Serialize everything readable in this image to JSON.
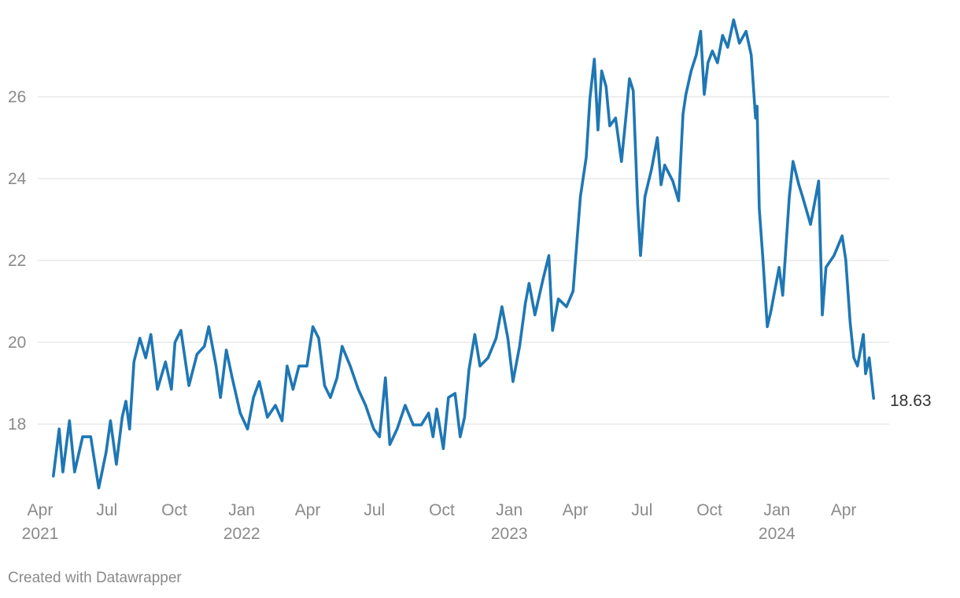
{
  "chart_data": {
    "type": "line",
    "title": "",
    "xlabel": "",
    "ylabel": "",
    "ylim": [
      16.3,
      28.0
    ],
    "y_ticks": [
      "18",
      "20",
      "22",
      "24",
      "26"
    ],
    "x_ticks": [
      {
        "date": "2021-04-01",
        "month": "Apr",
        "year": "2021"
      },
      {
        "date": "2021-07-01",
        "month": "Jul",
        "year": ""
      },
      {
        "date": "2021-10-01",
        "month": "Oct",
        "year": ""
      },
      {
        "date": "2022-01-01",
        "month": "Jan",
        "year": "2022"
      },
      {
        "date": "2022-04-01",
        "month": "Apr",
        "year": ""
      },
      {
        "date": "2022-07-01",
        "month": "Jul",
        "year": ""
      },
      {
        "date": "2022-10-01",
        "month": "Oct",
        "year": ""
      },
      {
        "date": "2023-01-01",
        "month": "Jan",
        "year": "2023"
      },
      {
        "date": "2023-04-01",
        "month": "Apr",
        "year": ""
      },
      {
        "date": "2023-07-01",
        "month": "Jul",
        "year": ""
      },
      {
        "date": "2023-10-01",
        "month": "Oct",
        "year": ""
      },
      {
        "date": "2024-01-01",
        "month": "Jan",
        "year": "2024"
      },
      {
        "date": "2024-04-01",
        "month": "Apr",
        "year": ""
      }
    ],
    "grid": true,
    "line_color": "#1f77b4",
    "end_label": "18.63",
    "series": [
      {
        "x": [
          "2021-04-19",
          "2021-04-27",
          "2021-05-02",
          "2021-05-11",
          "2021-05-18",
          "2021-05-29",
          "2021-06-09",
          "2021-06-20",
          "2021-06-30",
          "2021-07-06",
          "2021-07-14",
          "2021-07-22",
          "2021-07-27",
          "2021-08-01",
          "2021-08-07",
          "2021-08-15",
          "2021-08-23",
          "2021-08-30",
          "2021-09-08",
          "2021-09-19",
          "2021-09-27",
          "2021-10-02",
          "2021-10-10",
          "2021-10-21",
          "2021-11-01",
          "2021-11-11",
          "2021-11-17",
          "2021-11-27",
          "2021-12-03",
          "2021-12-11",
          "2021-12-19",
          "2021-12-30",
          "2022-01-09",
          "2022-01-17",
          "2022-01-25",
          "2022-02-05",
          "2022-02-16",
          "2022-02-25",
          "2022-03-04",
          "2022-03-12",
          "2022-03-20",
          "2022-03-31",
          "2022-04-08",
          "2022-04-16",
          "2022-04-24",
          "2022-05-02",
          "2022-05-11",
          "2022-05-18",
          "2022-05-29",
          "2022-06-09",
          "2022-06-19",
          "2022-06-30",
          "2022-07-08",
          "2022-07-16",
          "2022-07-22",
          "2022-08-01",
          "2022-08-12",
          "2022-08-23",
          "2022-09-03",
          "2022-09-13",
          "2022-09-19",
          "2022-09-24",
          "2022-10-03",
          "2022-10-10",
          "2022-10-19",
          "2022-10-26",
          "2022-11-01",
          "2022-11-07",
          "2022-11-15",
          "2022-11-22",
          "2022-12-03",
          "2022-12-14",
          "2022-12-22",
          "2022-12-30",
          "2023-01-06",
          "2023-01-15",
          "2023-01-23",
          "2023-01-28",
          "2023-02-05",
          "2023-02-16",
          "2023-02-24",
          "2023-03-01",
          "2023-03-09",
          "2023-03-20",
          "2023-03-29",
          "2023-04-03",
          "2023-04-08",
          "2023-04-16",
          "2023-04-21",
          "2023-04-27",
          "2023-05-02",
          "2023-05-07",
          "2023-05-13",
          "2023-05-18",
          "2023-05-26",
          "2023-06-03",
          "2023-06-09",
          "2023-06-14",
          "2023-06-19",
          "2023-06-25",
          "2023-06-29",
          "2023-07-05",
          "2023-07-14",
          "2023-07-22",
          "2023-07-27",
          "2023-08-01",
          "2023-08-12",
          "2023-08-20",
          "2023-08-26",
          "2023-08-30",
          "2023-09-06",
          "2023-09-13",
          "2023-09-19",
          "2023-09-24",
          "2023-09-29",
          "2023-10-05",
          "2023-10-12",
          "2023-10-19",
          "2023-10-26",
          "2023-11-03",
          "2023-11-11",
          "2023-11-20",
          "2023-11-27",
          "2023-12-03",
          "2023-12-05",
          "2023-12-08",
          "2023-12-13",
          "2023-12-19",
          "2023-12-24",
          "2024-01-04",
          "2024-01-09",
          "2024-01-18",
          "2024-01-23",
          "2024-01-31",
          "2024-02-05",
          "2024-02-16",
          "2024-02-27",
          "2024-03-03",
          "2024-03-08",
          "2024-03-19",
          "2024-03-30",
          "2024-04-04",
          "2024-04-10",
          "2024-04-15",
          "2024-04-20",
          "2024-04-28",
          "2024-05-01",
          "2024-05-06",
          "2024-05-12"
        ],
        "y": [
          16.73,
          17.88,
          16.83,
          18.08,
          16.83,
          17.69,
          17.69,
          16.44,
          17.31,
          18.08,
          17.02,
          18.17,
          18.56,
          17.88,
          19.52,
          20.1,
          19.62,
          20.19,
          18.85,
          19.52,
          18.85,
          20.0,
          20.29,
          18.94,
          19.71,
          19.9,
          20.38,
          19.42,
          18.65,
          19.81,
          19.13,
          18.27,
          17.88,
          18.65,
          19.04,
          18.17,
          18.46,
          18.08,
          19.42,
          18.85,
          19.42,
          19.42,
          20.38,
          20.1,
          18.94,
          18.65,
          19.13,
          19.9,
          19.42,
          18.85,
          18.46,
          17.88,
          17.69,
          19.13,
          17.5,
          17.88,
          18.46,
          17.98,
          17.98,
          18.27,
          17.69,
          18.37,
          17.4,
          18.65,
          18.75,
          17.69,
          18.17,
          19.33,
          20.19,
          19.42,
          19.62,
          20.1,
          20.87,
          20.1,
          19.04,
          19.9,
          20.96,
          21.44,
          20.67,
          21.54,
          22.12,
          20.29,
          21.06,
          20.87,
          21.25,
          22.4,
          23.56,
          24.52,
          25.96,
          26.92,
          25.19,
          26.63,
          26.25,
          25.29,
          25.48,
          24.42,
          25.48,
          26.44,
          26.15,
          23.37,
          22.12,
          23.56,
          24.23,
          25.0,
          23.85,
          24.33,
          23.94,
          23.46,
          25.58,
          26.06,
          26.63,
          27.02,
          27.6,
          26.06,
          26.83,
          27.12,
          26.83,
          27.5,
          27.21,
          27.88,
          27.31,
          27.6,
          27.02,
          25.48,
          25.77,
          23.27,
          22.02,
          20.38,
          20.77,
          21.83,
          21.15,
          23.56,
          24.42,
          23.85,
          23.56,
          22.88,
          23.94,
          20.67,
          21.83,
          22.12,
          22.6,
          22.02,
          20.48,
          19.62,
          19.42,
          20.19,
          19.23,
          19.62,
          18.63
        ]
      }
    ]
  },
  "footer": "Created with Datawrapper"
}
